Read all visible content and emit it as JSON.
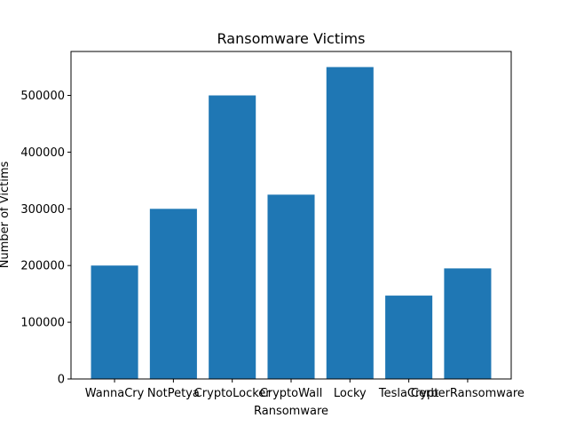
{
  "chart_data": {
    "type": "bar",
    "title": "Ransomware Victims",
    "x_label": "Ransomware",
    "y_label": "Number of Victims",
    "categories": [
      "WannaCry",
      "NotPetya",
      "CryptoLocker",
      "CryptoWall",
      "Locky",
      "TeslaCrypt",
      "CerberRansomware"
    ],
    "values": [
      200000,
      300000,
      500000,
      325000,
      550000,
      147000,
      195000
    ],
    "color": "#1f77b4",
    "ylim": [
      0,
      577500
    ],
    "yticks": [
      0,
      100000,
      200000,
      300000,
      400000,
      500000
    ],
    "grid": false
  }
}
